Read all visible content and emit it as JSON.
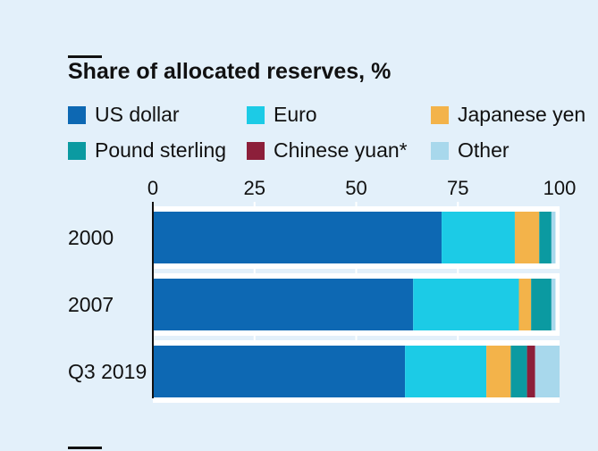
{
  "header": {
    "title": "Share of allocated reserves, %"
  },
  "colors": {
    "background": "#e3f0fa",
    "grid": "#ffffff",
    "axis": "#111111"
  },
  "chart_data": {
    "type": "bar",
    "orientation": "horizontal",
    "stacked": true,
    "title": "Share of allocated reserves, %",
    "xlabel": "",
    "ylabel": "",
    "xlim": [
      0,
      100
    ],
    "xticks": [
      "0",
      "25",
      "50",
      "75",
      "100"
    ],
    "categories": [
      "2000",
      "2007",
      "Q3 2019"
    ],
    "grid": true,
    "legend_position": "top",
    "series": [
      {
        "name": "US dollar",
        "color": "#0d68b3",
        "values": [
          71,
          64,
          62
        ]
      },
      {
        "name": "Euro",
        "color": "#1ccbe6",
        "values": [
          18,
          26,
          20
        ]
      },
      {
        "name": "Japanese yen",
        "color": "#f3b34a",
        "values": [
          6,
          3,
          6
        ]
      },
      {
        "name": "Pound sterling",
        "color": "#0b9aa1",
        "values": [
          3,
          5,
          4
        ]
      },
      {
        "name": "Chinese yuan*",
        "color": "#8c1f3a",
        "values": [
          0,
          0,
          2
        ]
      },
      {
        "name": "Other",
        "color": "#a8d8ec",
        "values": [
          1,
          1,
          6
        ]
      }
    ]
  }
}
